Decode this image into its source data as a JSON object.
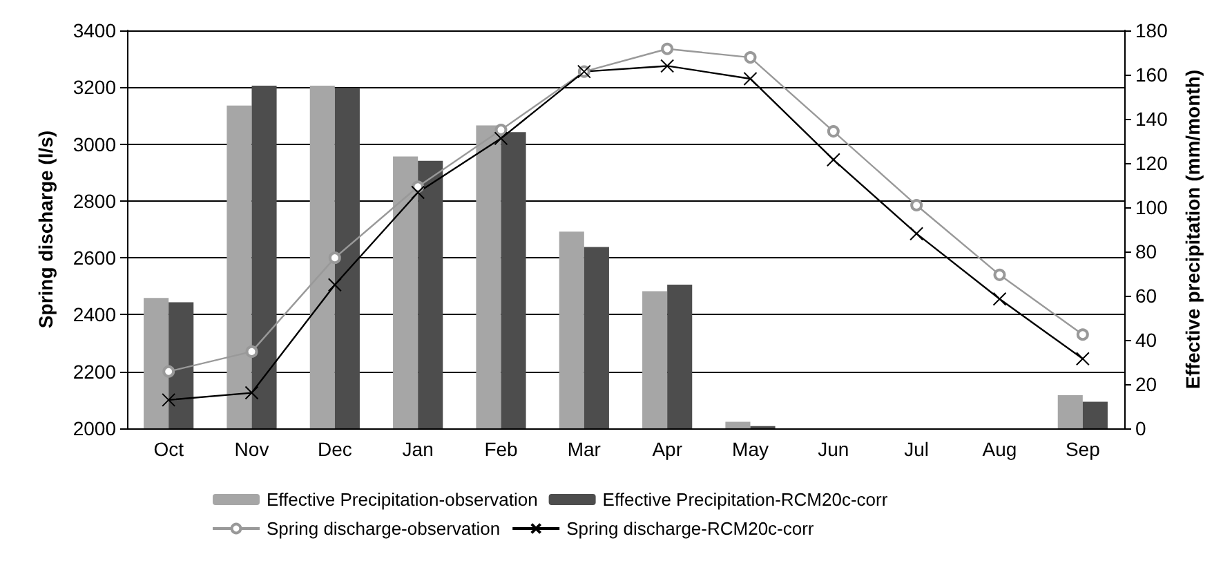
{
  "chart_data": {
    "type": "bar",
    "ylabel": "Spring discharge (l/s)",
    "y2label": "Effective precipitation (mm/month)",
    "categories": [
      "Oct",
      "Nov",
      "Dec",
      "Jan",
      "Feb",
      "Mar",
      "Apr",
      "May",
      "Jun",
      "Jul",
      "Aug",
      "Sep"
    ],
    "series": [
      {
        "name": "Effective Precipitation-observation",
        "axis": "y2",
        "color": "#a6a6a6",
        "values": [
          59,
          146,
          155,
          123,
          137,
          89,
          62,
          3,
          0,
          0,
          0,
          15
        ]
      },
      {
        "name": "Effective Precipitation-RCM20c-corr",
        "axis": "y2",
        "color": "#4d4d4d",
        "values": [
          57,
          155,
          154,
          121,
          134,
          82,
          65,
          1,
          0,
          0,
          0,
          12
        ]
      },
      {
        "name": "Spring discharge-observation",
        "type": "line",
        "color": "#999999",
        "marker": "circle",
        "values": [
          2200,
          2270,
          2600,
          2850,
          3050,
          3255,
          3335,
          3305,
          3045,
          2785,
          2540,
          2330
        ]
      },
      {
        "name": "Spring discharge-RCM20c-corr",
        "type": "line",
        "color": "#000000",
        "marker": "cross",
        "values": [
          2100,
          2125,
          2505,
          2830,
          3020,
          3255,
          3275,
          3230,
          2945,
          2685,
          2455,
          2245
        ]
      }
    ],
    "ylim": [
      2000,
      3400
    ],
    "yticks": [
      2000,
      2200,
      2400,
      2600,
      2800,
      3000,
      3200,
      3400
    ],
    "y2lim": [
      0,
      180
    ],
    "y2ticks": [
      0,
      20,
      40,
      60,
      80,
      100,
      120,
      140,
      160,
      180
    ],
    "grid": "y",
    "legend": "bottom",
    "line_style": "solid"
  }
}
